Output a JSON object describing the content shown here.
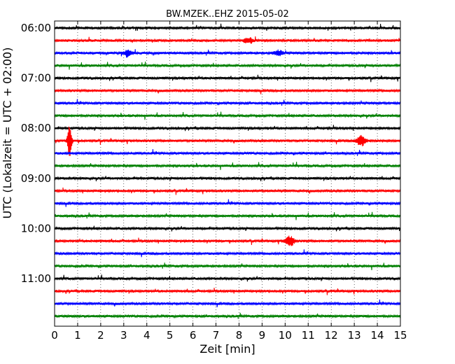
{
  "chart_data": {
    "type": "line",
    "title": "BW.MZEK..EHZ 2015-05-02",
    "xlabel": "Zeit  [min]",
    "ylabel": "UTC (Lokalzeit = UTC + 02:00)",
    "xlim": [
      0,
      15
    ],
    "x_ticks": [
      "0",
      "1",
      "2",
      "3",
      "4",
      "5",
      "6",
      "7",
      "8",
      "9",
      "10",
      "11",
      "12",
      "13",
      "14",
      "15"
    ],
    "y_ticks": [
      {
        "label": "06:00",
        "trace_index": 0
      },
      {
        "label": "07:00",
        "trace_index": 4
      },
      {
        "label": "08:00",
        "trace_index": 8
      },
      {
        "label": "09:00",
        "trace_index": 12
      },
      {
        "label": "10:00",
        "trace_index": 16
      },
      {
        "label": "11:00",
        "trace_index": 20
      }
    ],
    "grid": "vertical dotted",
    "colors": [
      "#000000",
      "#ff0000",
      "#0000ff",
      "#008000"
    ],
    "traces": [
      {
        "start": "06:00",
        "color": "#000000"
      },
      {
        "start": "06:15",
        "color": "#ff0000"
      },
      {
        "start": "06:30",
        "color": "#0000ff"
      },
      {
        "start": "06:45",
        "color": "#008000"
      },
      {
        "start": "07:00",
        "color": "#000000"
      },
      {
        "start": "07:15",
        "color": "#ff0000"
      },
      {
        "start": "07:30",
        "color": "#0000ff"
      },
      {
        "start": "07:45",
        "color": "#008000"
      },
      {
        "start": "08:00",
        "color": "#000000"
      },
      {
        "start": "08:15",
        "color": "#ff0000"
      },
      {
        "start": "08:30",
        "color": "#0000ff"
      },
      {
        "start": "08:45",
        "color": "#008000"
      },
      {
        "start": "09:00",
        "color": "#000000"
      },
      {
        "start": "09:15",
        "color": "#ff0000"
      },
      {
        "start": "09:30",
        "color": "#0000ff"
      },
      {
        "start": "09:45",
        "color": "#008000"
      },
      {
        "start": "10:00",
        "color": "#000000"
      },
      {
        "start": "10:15",
        "color": "#ff0000"
      },
      {
        "start": "10:30",
        "color": "#0000ff"
      },
      {
        "start": "10:45",
        "color": "#008000"
      },
      {
        "start": "11:00",
        "color": "#000000"
      },
      {
        "start": "11:15",
        "color": "#ff0000"
      },
      {
        "start": "11:30",
        "color": "#0000ff"
      },
      {
        "start": "11:45",
        "color": "#008000"
      }
    ],
    "events": [
      {
        "trace": "08:15",
        "minute": 0.65,
        "amplitude": "large"
      },
      {
        "trace": "08:15",
        "minute": 13.3,
        "amplitude": "medium"
      },
      {
        "trace": "10:15",
        "minute": 10.2,
        "amplitude": "medium"
      },
      {
        "trace": "06:15",
        "minute": 8.4,
        "amplitude": "small"
      },
      {
        "trace": "06:30",
        "minute": 3.2,
        "amplitude": "small"
      },
      {
        "trace": "06:30",
        "minute": 9.7,
        "amplitude": "small"
      }
    ]
  }
}
